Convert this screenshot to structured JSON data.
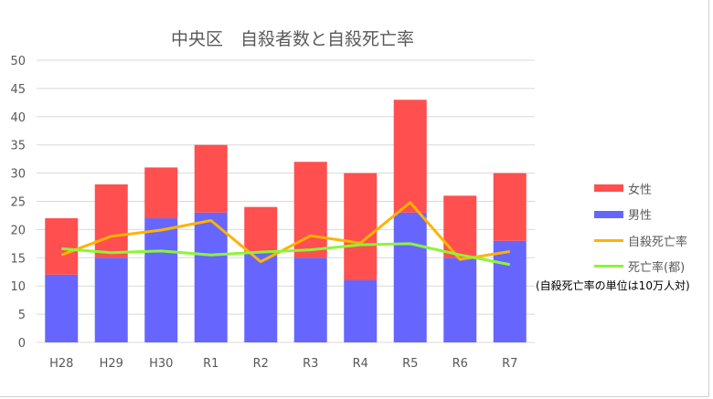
{
  "chart_data": {
    "type": "bar",
    "stacked": true,
    "title": "中央区　自殺者数と自殺死亡率",
    "categories": [
      "H28",
      "H29",
      "H30",
      "R1",
      "R2",
      "R3",
      "R4",
      "R5",
      "R6",
      "R7"
    ],
    "ylim": [
      0,
      50
    ],
    "yticks": [
      0,
      5,
      10,
      15,
      20,
      25,
      30,
      35,
      40,
      45,
      50
    ],
    "grid": true,
    "legend_placement": "right",
    "series": [
      {
        "name": "男性",
        "kind": "bar",
        "color": "#6666ff",
        "values": [
          12,
          15,
          22,
          23,
          16,
          15,
          11,
          23,
          15,
          18
        ]
      },
      {
        "name": "女性",
        "kind": "bar",
        "color": "#ff4f4f",
        "values": [
          10,
          13,
          9,
          12,
          8,
          17,
          19,
          20,
          11,
          12
        ]
      },
      {
        "name": "自殺死亡率",
        "kind": "line",
        "color": "#ffb300",
        "values": [
          15.5,
          18.8,
          19.9,
          21.6,
          14.3,
          18.9,
          17.6,
          24.8,
          14.7,
          16.1
        ]
      },
      {
        "name": "死亡率(都)",
        "kind": "line",
        "color": "#8cf538",
        "values": [
          16.6,
          15.9,
          16.2,
          15.5,
          16.0,
          16.4,
          17.3,
          17.5,
          15.5,
          13.8
        ]
      }
    ],
    "legend_order": [
      "女性",
      "男性",
      "自殺死亡率",
      "死亡率(都)"
    ],
    "note": "(自殺死亡率の単位は10万人対)"
  }
}
